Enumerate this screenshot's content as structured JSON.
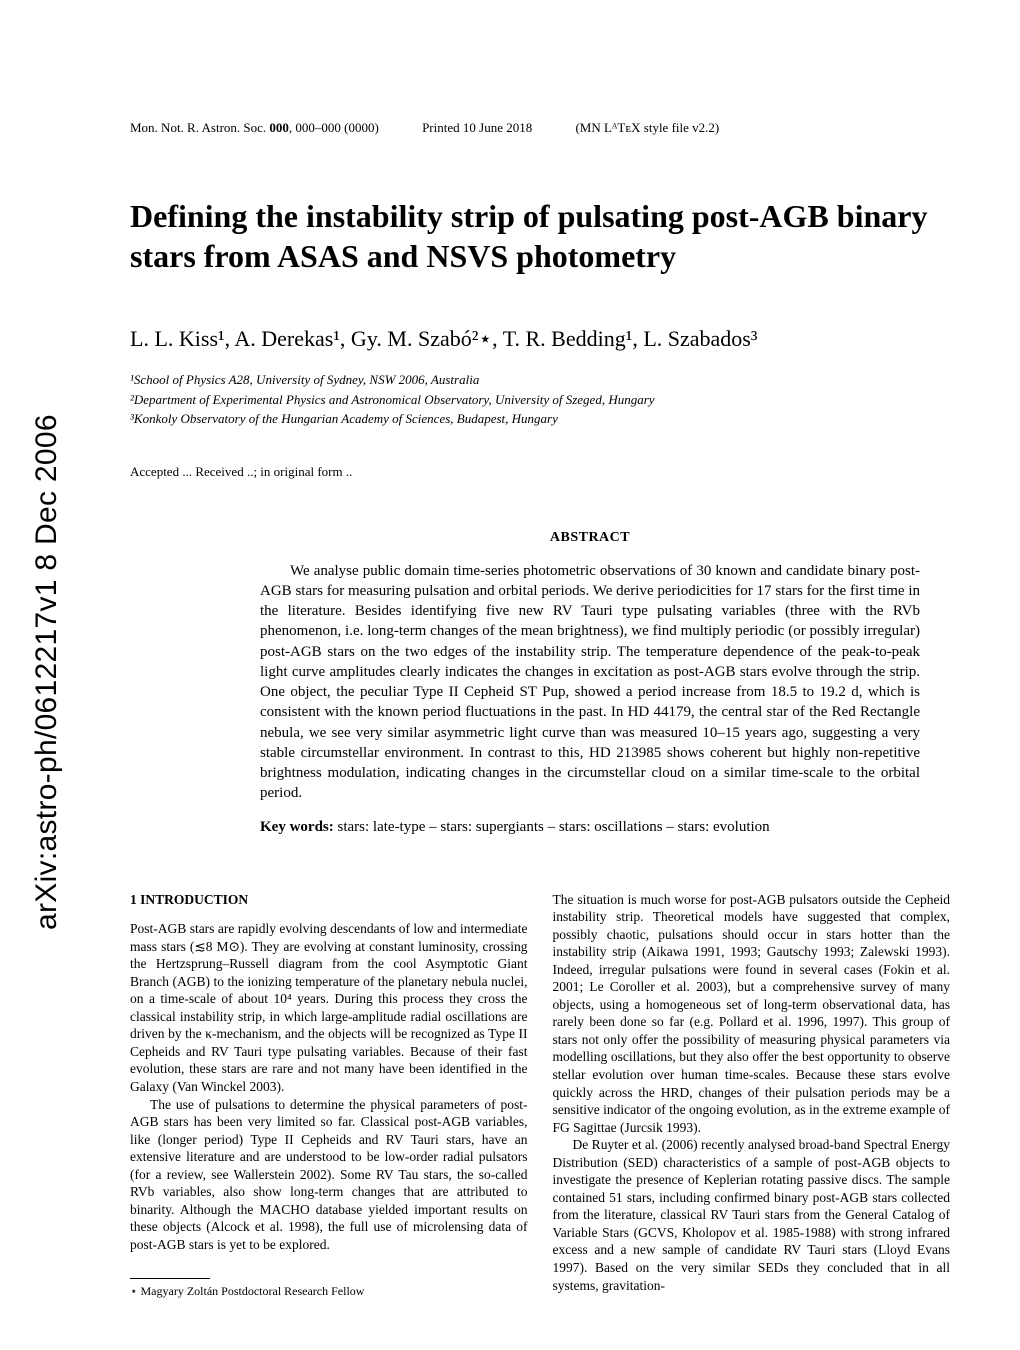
{
  "arxiv_stamp": "arXiv:astro-ph/0612217v1  8 Dec 2006",
  "header": {
    "journal": "Mon. Not. R. Astron. Soc.",
    "volume": "000",
    "pages": "000–000 (0000)",
    "printed": "Printed 10 June 2018",
    "style_note": "(MN LᴬTᴇX style file v2.2)"
  },
  "title": "Defining the instability strip of pulsating post-AGB binary stars from ASAS and NSVS photometry",
  "authors": "L. L. Kiss¹, A. Derekas¹, Gy. M. Szabó²⋆, T. R. Bedding¹, L. Szabados³",
  "affiliations": {
    "a1": "¹School of Physics A28, University of Sydney, NSW 2006, Australia",
    "a2": "²Department of Experimental Physics and Astronomical Observatory, University of Szeged, Hungary",
    "a3": "³Konkoly Observatory of the Hungarian Academy of Sciences, Budapest, Hungary"
  },
  "accepted": "Accepted ... Received ..; in original form ..",
  "abstract_heading": "ABSTRACT",
  "abstract_text": "We analyse public domain time-series photometric observations of 30 known and candidate binary post-AGB stars for measuring pulsation and orbital periods. We derive periodicities for 17 stars for the first time in the literature. Besides identifying five new RV Tauri type pulsating variables (three with the RVb phenomenon, i.e. long-term changes of the mean brightness), we find multiply periodic (or possibly irregular) post-AGB stars on the two edges of the instability strip. The temperature dependence of the peak-to-peak light curve amplitudes clearly indicates the changes in excitation as post-AGB stars evolve through the strip. One object, the peculiar Type II Cepheid ST Pup, showed a period increase from 18.5 to 19.2 d, which is consistent with the known period fluctuations in the past. In HD 44179, the central star of the Red Rectangle nebula, we see very similar asymmetric light curve than was measured 10–15 years ago, suggesting a very stable circumstellar environment. In contrast to this, HD 213985 shows coherent but highly non-repetitive brightness modulation, indicating changes in the circumstellar cloud on a similar time-scale to the orbital period.",
  "keywords_label": "Key words:",
  "keywords_text": "stars: late-type – stars: supergiants – stars: oscillations – stars: evolution",
  "section1_heading": "1   INTRODUCTION",
  "col1_p1": "Post-AGB stars are rapidly evolving descendants of low and intermediate mass stars (≲8 M⊙). They are evolving at constant luminosity, crossing the Hertzsprung–Russell diagram from the cool Asymptotic Giant Branch (AGB) to the ionizing temperature of the planetary nebula nuclei, on a time-scale of about 10⁴ years. During this process they cross the classical instability strip, in which large-amplitude radial oscillations are driven by the κ-mechanism, and the objects will be recognized as Type II Cepheids and RV Tauri type pulsating variables. Because of their fast evolution, these stars are rare and not many have been identified in the Galaxy (Van Winckel 2003).",
  "col1_p2": "The use of pulsations to determine the physical parameters of post-AGB stars has been very limited so far. Classical post-AGB variables, like (longer period) Type II Cepheids and RV Tauri stars, have an extensive literature and are understood to be low-order radial pulsators (for a review, see Wallerstein 2002). Some RV Tau stars, the so-called RVb variables, also show long-term changes that are attributed to binarity. Although the MACHO database yielded important results on these objects (Alcock et al. 1998), the full use of microlensing data of post-AGB stars is yet to be explored.",
  "col2_p1": "The situation is much worse for post-AGB pulsators outside the Cepheid instability strip. Theoretical models have suggested that complex, possibly chaotic, pulsations should occur in stars hotter than the instability strip (Aikawa 1991, 1993; Gautschy 1993; Zalewski 1993). Indeed, irregular pulsations were found in several cases (Fokin et al. 2001; Le Coroller et al. 2003), but a comprehensive survey of many objects, using a homogeneous set of long-term observational data, has rarely been done so far (e.g. Pollard et al. 1996, 1997). This group of stars not only offer the possibility of measuring physical parameters via modelling oscillations, but they also offer the best opportunity to observe stellar evolution over human time-scales. Because these stars evolve quickly across the HRD, changes of their pulsation periods may be a sensitive indicator of the ongoing evolution, as in the extreme example of FG Sagittae (Jurcsik 1993).",
  "col2_p2": "De Ruyter et al. (2006) recently analysed broad-band Spectral Energy Distribution (SED) characteristics of a sample of post-AGB objects to investigate the presence of Keplerian rotating passive discs. The sample contained 51 stars, including confirmed binary post-AGB stars collected from the literature, classical RV Tauri stars from the General Catalog of Variable Stars (GCVS, Kholopov et al. 1985-1988) with strong infrared excess and a new sample of candidate RV Tauri stars (Lloyd Evans 1997). Based on the very similar SEDs they concluded that in all systems, gravitation-",
  "footnote": "⋆ Magyary Zoltán Postdoctoral Research Fellow"
}
